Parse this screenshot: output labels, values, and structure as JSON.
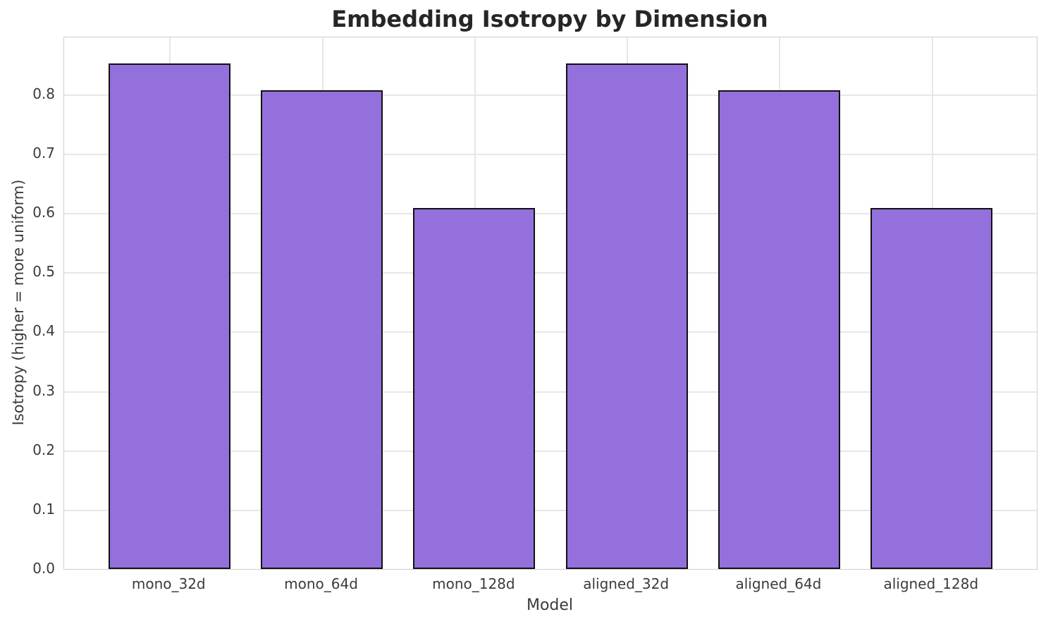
{
  "chart_data": {
    "type": "bar",
    "title": "Embedding Isotropy by Dimension",
    "xlabel": "Model",
    "ylabel": "Isotropy (higher = more uniform)",
    "categories": [
      "mono_32d",
      "mono_64d",
      "mono_128d",
      "aligned_32d",
      "aligned_64d",
      "aligned_128d"
    ],
    "values": [
      0.852,
      0.807,
      0.608,
      0.852,
      0.807,
      0.608
    ],
    "ylim": [
      0.0,
      0.896
    ],
    "yticks": [
      0.0,
      0.1,
      0.2,
      0.3,
      0.4,
      0.5,
      0.6,
      0.7,
      0.8
    ],
    "grid": true,
    "legend_position": "none",
    "bar_color": "#9370DB",
    "bar_edge_color": "#111111",
    "grid_color": "#e7e7e7",
    "text_color": "#3b3b3b",
    "title_color": "#262626",
    "bar_width_fraction": 0.8
  }
}
